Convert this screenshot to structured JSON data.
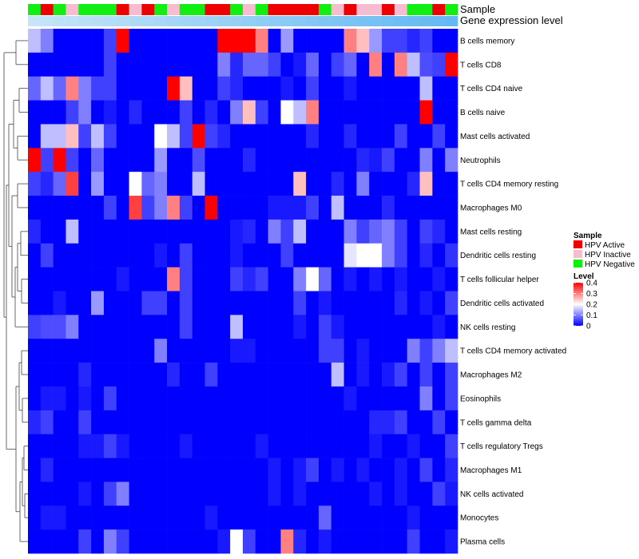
{
  "chart_data": {
    "type": "heatmap",
    "annotation_labels": [
      "Sample",
      "Gene expression level"
    ],
    "rows": [
      "B cells memory",
      "T cells CD8",
      "T cells CD4 naive",
      "B cells naive",
      "Mast cells activated",
      "Neutrophils",
      "T cells CD4 memory resting",
      "Macrophages M0",
      "Mast cells resting",
      "Dendritic cells resting",
      "T cells follicular helper",
      "Dendritic cells activated",
      "NK cells resting",
      "T cells CD4 memory activated",
      "Macrophages M2",
      "Eosinophils",
      "T cells gamma delta",
      "T cells regulatory  Tregs",
      "Macrophages M1",
      "NK cells activated",
      "Monocytes",
      "Plasma cells"
    ],
    "sample_groups": [
      "N",
      "A",
      "N",
      "I",
      "N",
      "N",
      "N",
      "A",
      "I",
      "A",
      "N",
      "I",
      "N",
      "N",
      "A",
      "A",
      "N",
      "I",
      "N",
      "A",
      "A",
      "A",
      "A",
      "N",
      "I",
      "A",
      "I",
      "I",
      "A",
      "I",
      "N",
      "N",
      "A",
      "N"
    ],
    "gene_expression_level": [
      0.02,
      0.05,
      0.08,
      0.11,
      0.14,
      0.17,
      0.2,
      0.23,
      0.26,
      0.29,
      0.32,
      0.35,
      0.38,
      0.41,
      0.44,
      0.47,
      0.5,
      0.53,
      0.56,
      0.59,
      0.62,
      0.65,
      0.68,
      0.71,
      0.74,
      0.77,
      0.8,
      0.83,
      0.86,
      0.89,
      0.92,
      0.95,
      0.97,
      1.0
    ],
    "values": [
      [
        0.15,
        0.1,
        0.0,
        0.0,
        0.0,
        0.0,
        0.05,
        0.4,
        0.0,
        0.0,
        0.0,
        0.0,
        0.0,
        0.0,
        0.0,
        0.4,
        0.4,
        0.4,
        0.3,
        0.0,
        0.12,
        0.0,
        0.0,
        0.0,
        0.0,
        0.3,
        0.25,
        0.12,
        0.05,
        0.05,
        0.03,
        0.05,
        0.0,
        0.0
      ],
      [
        0.0,
        0.0,
        0.0,
        0.0,
        0.0,
        0.0,
        0.05,
        0.0,
        0.0,
        0.0,
        0.0,
        0.0,
        0.0,
        0.0,
        0.0,
        0.1,
        0.03,
        0.08,
        0.08,
        0.05,
        0.0,
        0.02,
        0.08,
        0.0,
        0.05,
        0.08,
        0.0,
        0.3,
        0.0,
        0.3,
        0.15,
        0.06,
        0.05,
        0.4
      ],
      [
        0.08,
        0.15,
        0.08,
        0.3,
        0.1,
        0.05,
        0.05,
        0.0,
        0.0,
        0.0,
        0.0,
        0.4,
        0.25,
        0.0,
        0.0,
        0.05,
        0.03,
        0.0,
        0.0,
        0.0,
        0.02,
        0.0,
        0.05,
        0.0,
        0.0,
        0.02,
        0.0,
        0.0,
        0.0,
        0.0,
        0.0,
        0.15,
        0.0,
        0.0
      ],
      [
        0.0,
        0.0,
        0.0,
        0.05,
        0.1,
        0.0,
        0.02,
        0.0,
        0.03,
        0.0,
        0.0,
        0.0,
        0.05,
        0.0,
        0.03,
        0.0,
        0.1,
        0.25,
        0.05,
        0.0,
        0.2,
        0.15,
        0.3,
        0.0,
        0.0,
        0.0,
        0.0,
        0.0,
        0.0,
        0.0,
        0.0,
        0.4,
        0.0,
        0.0
      ],
      [
        0.0,
        0.15,
        0.15,
        0.25,
        0.05,
        0.15,
        0.05,
        0.0,
        0.0,
        0.0,
        0.2,
        0.15,
        0.05,
        0.4,
        0.05,
        0.03,
        0.0,
        0.0,
        0.0,
        0.0,
        0.0,
        0.0,
        0.03,
        0.0,
        0.0,
        0.03,
        0.0,
        0.0,
        0.0,
        0.05,
        0.0,
        0.0,
        0.05,
        0.0
      ],
      [
        0.4,
        0.05,
        0.4,
        0.05,
        0.0,
        0.08,
        0.0,
        0.0,
        0.0,
        0.0,
        0.12,
        0.0,
        0.0,
        0.06,
        0.0,
        0.0,
        0.0,
        0.03,
        0.0,
        0.0,
        0.0,
        0.0,
        0.0,
        0.0,
        0.0,
        0.0,
        0.03,
        0.02,
        0.05,
        0.0,
        0.0,
        0.1,
        0.0,
        0.1
      ],
      [
        0.05,
        0.03,
        0.08,
        0.35,
        0.0,
        0.12,
        0.0,
        0.0,
        0.2,
        0.08,
        0.1,
        0.0,
        0.0,
        0.15,
        0.0,
        0.0,
        0.0,
        0.0,
        0.0,
        0.0,
        0.0,
        0.25,
        0.0,
        0.0,
        0.03,
        0.0,
        0.1,
        0.0,
        0.0,
        0.0,
        0.03,
        0.25,
        0.0,
        0.0
      ],
      [
        0.0,
        0.0,
        0.0,
        0.0,
        0.0,
        0.0,
        0.05,
        0.0,
        0.35,
        0.05,
        0.1,
        0.3,
        0.05,
        0.0,
        0.4,
        0.0,
        0.0,
        0.0,
        0.0,
        0.02,
        0.02,
        0.02,
        0.05,
        0.0,
        0.15,
        0.0,
        0.0,
        0.0,
        0.03,
        0.0,
        0.0,
        0.0,
        0.0,
        0.0
      ],
      [
        0.03,
        0.0,
        0.0,
        0.15,
        0.0,
        0.0,
        0.0,
        0.0,
        0.0,
        0.0,
        0.0,
        0.0,
        0.0,
        0.0,
        0.0,
        0.0,
        0.02,
        0.03,
        0.0,
        0.1,
        0.05,
        0.15,
        0.0,
        0.0,
        0.0,
        0.1,
        0.05,
        0.08,
        0.1,
        0.05,
        0.0,
        0.05,
        0.03,
        0.0
      ],
      [
        0.0,
        0.05,
        0.0,
        0.0,
        0.0,
        0.0,
        0.0,
        0.0,
        0.0,
        0.0,
        0.02,
        0.0,
        0.05,
        0.0,
        0.0,
        0.0,
        0.02,
        0.0,
        0.0,
        0.0,
        0.05,
        0.0,
        0.0,
        0.0,
        0.0,
        0.18,
        0.2,
        0.2,
        0.1,
        0.05,
        0.0,
        0.03,
        0.0,
        0.04
      ],
      [
        0.0,
        0.0,
        0.0,
        0.0,
        0.0,
        0.0,
        0.0,
        0.02,
        0.0,
        0.0,
        0.0,
        0.3,
        0.05,
        0.0,
        0.0,
        0.0,
        0.05,
        0.03,
        0.05,
        0.0,
        0.0,
        0.1,
        0.2,
        0.08,
        0.0,
        0.02,
        0.0,
        0.02,
        0.0,
        0.02,
        0.0,
        0.0,
        0.02,
        0.0
      ],
      [
        0.0,
        0.0,
        0.02,
        0.0,
        0.0,
        0.12,
        0.0,
        0.0,
        0.0,
        0.05,
        0.05,
        0.0,
        0.05,
        0.0,
        0.0,
        0.0,
        0.0,
        0.0,
        0.0,
        0.0,
        0.0,
        0.05,
        0.0,
        0.02,
        0.0,
        0.0,
        0.0,
        0.0,
        0.0,
        0.03,
        0.0,
        0.02,
        0.0,
        0.05
      ],
      [
        0.05,
        0.06,
        0.06,
        0.1,
        0.0,
        0.0,
        0.0,
        0.0,
        0.0,
        0.0,
        0.0,
        0.0,
        0.05,
        0.0,
        0.0,
        0.0,
        0.15,
        0.0,
        0.0,
        0.0,
        0.0,
        0.02,
        0.0,
        0.05,
        0.02,
        0.0,
        0.0,
        0.0,
        0.0,
        0.0,
        0.0,
        0.0,
        0.02,
        0.0
      ],
      [
        0.0,
        0.0,
        0.0,
        0.0,
        0.0,
        0.0,
        0.0,
        0.0,
        0.0,
        0.0,
        0.1,
        0.0,
        0.0,
        0.0,
        0.0,
        0.0,
        0.02,
        0.02,
        0.0,
        0.0,
        0.0,
        0.0,
        0.0,
        0.05,
        0.05,
        0.0,
        0.02,
        0.0,
        0.0,
        0.0,
        0.1,
        0.05,
        0.1,
        0.15
      ],
      [
        0.0,
        0.0,
        0.0,
        0.0,
        0.03,
        0.0,
        0.0,
        0.0,
        0.0,
        0.0,
        0.0,
        0.03,
        0.0,
        0.0,
        0.05,
        0.0,
        0.0,
        0.0,
        0.0,
        0.0,
        0.0,
        0.0,
        0.0,
        0.0,
        0.15,
        0.0,
        0.02,
        0.0,
        0.02,
        0.05,
        0.0,
        0.05,
        0.0,
        0.05
      ],
      [
        0.0,
        0.02,
        0.02,
        0.0,
        0.02,
        0.0,
        0.05,
        0.0,
        0.0,
        0.0,
        0.0,
        0.0,
        0.0,
        0.0,
        0.0,
        0.0,
        0.0,
        0.0,
        0.0,
        0.0,
        0.0,
        0.0,
        0.0,
        0.0,
        0.0,
        0.02,
        0.0,
        0.0,
        0.0,
        0.0,
        0.0,
        0.1,
        0.0,
        0.05
      ],
      [
        0.03,
        0.05,
        0.0,
        0.0,
        0.05,
        0.0,
        0.0,
        0.0,
        0.0,
        0.0,
        0.0,
        0.0,
        0.0,
        0.0,
        0.0,
        0.0,
        0.0,
        0.0,
        0.0,
        0.0,
        0.0,
        0.0,
        0.0,
        0.0,
        0.0,
        0.0,
        0.0,
        0.03,
        0.03,
        0.05,
        0.0,
        0.0,
        0.05,
        0.0
      ],
      [
        0.0,
        0.0,
        0.0,
        0.0,
        0.02,
        0.02,
        0.05,
        0.02,
        0.0,
        0.0,
        0.0,
        0.0,
        0.02,
        0.0,
        0.0,
        0.0,
        0.0,
        0.0,
        0.02,
        0.0,
        0.0,
        0.0,
        0.0,
        0.0,
        0.0,
        0.0,
        0.0,
        0.02,
        0.0,
        0.0,
        0.02,
        0.0,
        0.0,
        0.05
      ],
      [
        0.0,
        0.03,
        0.0,
        0.0,
        0.0,
        0.0,
        0.0,
        0.0,
        0.0,
        0.0,
        0.0,
        0.0,
        0.0,
        0.0,
        0.0,
        0.0,
        0.0,
        0.0,
        0.0,
        0.02,
        0.0,
        0.02,
        0.05,
        0.0,
        0.02,
        0.0,
        0.02,
        0.0,
        0.0,
        0.02,
        0.0,
        0.05,
        0.0,
        0.03
      ],
      [
        0.0,
        0.0,
        0.0,
        0.0,
        0.02,
        0.0,
        0.05,
        0.1,
        0.0,
        0.0,
        0.0,
        0.0,
        0.0,
        0.0,
        0.0,
        0.0,
        0.0,
        0.0,
        0.0,
        0.02,
        0.0,
        0.02,
        0.0,
        0.0,
        0.0,
        0.0,
        0.0,
        0.02,
        0.0,
        0.02,
        0.0,
        0.0,
        0.05,
        0.02
      ],
      [
        0.0,
        0.02,
        0.02,
        0.0,
        0.0,
        0.0,
        0.0,
        0.0,
        0.0,
        0.0,
        0.0,
        0.0,
        0.0,
        0.0,
        0.02,
        0.0,
        0.0,
        0.0,
        0.0,
        0.0,
        0.0,
        0.0,
        0.0,
        0.08,
        0.0,
        0.0,
        0.0,
        0.0,
        0.0,
        0.0,
        0.02,
        0.0,
        0.0,
        0.0
      ],
      [
        0.0,
        0.0,
        0.0,
        0.0,
        0.05,
        0.0,
        0.1,
        0.05,
        0.0,
        0.0,
        0.0,
        0.0,
        0.0,
        0.0,
        0.0,
        0.02,
        0.2,
        0.05,
        0.0,
        0.0,
        0.3,
        0.03,
        0.0,
        0.02,
        0.0,
        0.0,
        0.0,
        0.0,
        0.0,
        0.0,
        0.05,
        0.0,
        0.0,
        0.02
      ]
    ],
    "legend": {
      "sample_title": "Sample",
      "sample_entries": [
        {
          "key": "A",
          "label": "HPV Active",
          "color": "#ee0000"
        },
        {
          "key": "I",
          "label": "HPV Inactive",
          "color": "#f7bcd0"
        },
        {
          "key": "N",
          "label": "HPV Negative",
          "color": "#11ee11"
        }
      ],
      "level_title": "Level",
      "level_ticks": [
        "0.4",
        "0.3",
        "0.2",
        "0.1",
        "0"
      ],
      "level_tick_values": [
        0.4,
        0.3,
        0.2,
        0.1,
        0.0
      ],
      "level_range": [
        0,
        0.4
      ]
    },
    "colors": {
      "low": "#0000ff",
      "mid": "#ffffff",
      "high": "#ff0000",
      "expression_low": "#c8e6f7",
      "expression_high": "#64b9f2",
      "dendrogram": "#444444"
    }
  }
}
